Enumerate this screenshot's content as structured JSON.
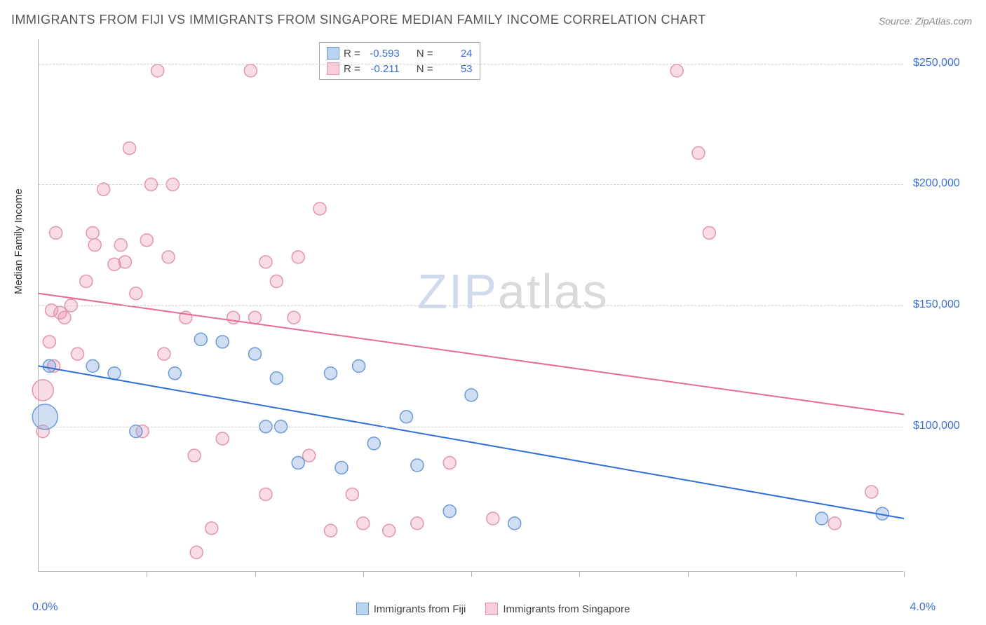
{
  "title": "IMMIGRANTS FROM FIJI VS IMMIGRANTS FROM SINGAPORE MEDIAN FAMILY INCOME CORRELATION CHART",
  "source": "Source: ZipAtlas.com",
  "ylabel": "Median Family Income",
  "watermark_zip": "ZIP",
  "watermark_atlas": "atlas",
  "chart": {
    "type": "scatter",
    "background_color": "#ffffff",
    "grid_color": "#cfcfcf",
    "axis_color": "#b0b0b0",
    "text_color": "#555555",
    "value_color": "#3a6fd8",
    "xlim": [
      0.0,
      4.0
    ],
    "ylim": [
      40000,
      260000
    ],
    "ytick_values": [
      100000,
      150000,
      200000,
      250000
    ],
    "ytick_labels": [
      "$100,000",
      "$150,000",
      "$200,000",
      "$250,000"
    ],
    "xtick_positions": [
      0.5,
      1.0,
      1.5,
      2.0,
      2.5,
      3.0,
      3.5,
      4.0
    ],
    "xaxis_left_label": "0.0%",
    "xaxis_right_label": "4.0%",
    "marker_radius": 9,
    "marker_stroke_width": 1.5,
    "trend_line_width": 2,
    "series": [
      {
        "name": "Immigrants from Fiji",
        "fill": "rgba(120,160,220,0.35)",
        "stroke": "#6a9ad8",
        "swatch_fill": "#bcd3f0",
        "swatch_border": "#6a9ad8",
        "R": "-0.593",
        "N": "24",
        "trend": {
          "y_at_xmin": 125000,
          "y_at_xmax": 62000,
          "color": "#2d6fd6"
        },
        "points": [
          {
            "x": 0.03,
            "y": 104000,
            "r": 18
          },
          {
            "x": 0.05,
            "y": 125000
          },
          {
            "x": 0.45,
            "y": 98000
          },
          {
            "x": 0.75,
            "y": 136000
          },
          {
            "x": 0.63,
            "y": 122000
          },
          {
            "x": 0.35,
            "y": 122000
          },
          {
            "x": 0.85,
            "y": 135000
          },
          {
            "x": 1.0,
            "y": 130000
          },
          {
            "x": 1.1,
            "y": 120000
          },
          {
            "x": 1.12,
            "y": 100000
          },
          {
            "x": 1.2,
            "y": 85000
          },
          {
            "x": 1.35,
            "y": 122000
          },
          {
            "x": 1.4,
            "y": 83000
          },
          {
            "x": 1.48,
            "y": 125000
          },
          {
            "x": 1.55,
            "y": 93000
          },
          {
            "x": 1.7,
            "y": 104000
          },
          {
            "x": 1.75,
            "y": 84000
          },
          {
            "x": 2.0,
            "y": 113000
          },
          {
            "x": 1.9,
            "y": 65000
          },
          {
            "x": 2.2,
            "y": 60000
          },
          {
            "x": 3.62,
            "y": 62000
          },
          {
            "x": 3.9,
            "y": 64000
          },
          {
            "x": 0.25,
            "y": 125000
          },
          {
            "x": 1.05,
            "y": 100000
          }
        ]
      },
      {
        "name": "Immigrants from Singapore",
        "fill": "rgba(235,140,170,0.30)",
        "stroke": "#e295ae",
        "swatch_fill": "#f6cdd9",
        "swatch_border": "#e295ae",
        "R": "-0.211",
        "N": "53",
        "trend": {
          "y_at_xmin": 155000,
          "y_at_xmax": 105000,
          "color": "#e86b92"
        },
        "points": [
          {
            "x": 0.02,
            "y": 115000,
            "r": 15
          },
          {
            "x": 0.05,
            "y": 135000
          },
          {
            "x": 0.06,
            "y": 148000
          },
          {
            "x": 0.1,
            "y": 147000
          },
          {
            "x": 0.08,
            "y": 180000
          },
          {
            "x": 0.07,
            "y": 125000
          },
          {
            "x": 0.15,
            "y": 150000
          },
          {
            "x": 0.22,
            "y": 160000
          },
          {
            "x": 0.25,
            "y": 180000
          },
          {
            "x": 0.26,
            "y": 175000
          },
          {
            "x": 0.3,
            "y": 198000
          },
          {
            "x": 0.18,
            "y": 130000
          },
          {
            "x": 0.35,
            "y": 167000
          },
          {
            "x": 0.38,
            "y": 175000
          },
          {
            "x": 0.4,
            "y": 168000
          },
          {
            "x": 0.42,
            "y": 215000
          },
          {
            "x": 0.45,
            "y": 155000
          },
          {
            "x": 0.5,
            "y": 177000
          },
          {
            "x": 0.52,
            "y": 200000
          },
          {
            "x": 0.55,
            "y": 247000
          },
          {
            "x": 0.6,
            "y": 170000
          },
          {
            "x": 0.62,
            "y": 200000
          },
          {
            "x": 0.68,
            "y": 145000
          },
          {
            "x": 0.72,
            "y": 88000
          },
          {
            "x": 0.73,
            "y": 48000
          },
          {
            "x": 0.8,
            "y": 58000
          },
          {
            "x": 0.85,
            "y": 95000
          },
          {
            "x": 0.9,
            "y": 145000
          },
          {
            "x": 0.98,
            "y": 247000
          },
          {
            "x": 1.0,
            "y": 145000
          },
          {
            "x": 1.05,
            "y": 168000
          },
          {
            "x": 1.05,
            "y": 72000
          },
          {
            "x": 1.1,
            "y": 160000
          },
          {
            "x": 1.18,
            "y": 145000
          },
          {
            "x": 1.2,
            "y": 170000
          },
          {
            "x": 1.25,
            "y": 88000
          },
          {
            "x": 1.3,
            "y": 190000
          },
          {
            "x": 1.35,
            "y": 57000
          },
          {
            "x": 1.45,
            "y": 72000
          },
          {
            "x": 1.5,
            "y": 60000
          },
          {
            "x": 1.62,
            "y": 57000
          },
          {
            "x": 1.75,
            "y": 60000
          },
          {
            "x": 1.9,
            "y": 85000
          },
          {
            "x": 2.1,
            "y": 62000
          },
          {
            "x": 2.95,
            "y": 247000
          },
          {
            "x": 3.05,
            "y": 213000
          },
          {
            "x": 3.1,
            "y": 180000
          },
          {
            "x": 3.68,
            "y": 60000
          },
          {
            "x": 3.85,
            "y": 73000
          },
          {
            "x": 0.12,
            "y": 145000
          },
          {
            "x": 0.02,
            "y": 98000
          },
          {
            "x": 0.48,
            "y": 98000
          },
          {
            "x": 0.58,
            "y": 130000
          }
        ]
      }
    ]
  },
  "legend": {
    "R_label": "R =",
    "N_label": "N ="
  }
}
